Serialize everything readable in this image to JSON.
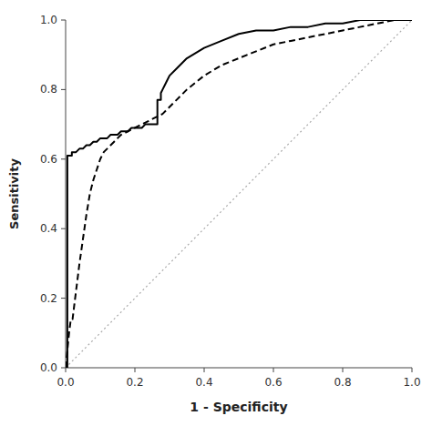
{
  "chart_data": {
    "type": "line",
    "xlabel": "1 - Specificity",
    "ylabel": "Sensitivity",
    "xlim": [
      0.0,
      1.0
    ],
    "ylim": [
      0.0,
      1.0
    ],
    "xticks": [
      {
        "value": 0.0,
        "label": "0.0"
      },
      0.2,
      0.4,
      0.6,
      0.8,
      {
        "value": 1.0,
        "label": "1.0"
      }
    ],
    "yticks": [
      {
        "value": 0.0,
        "label": "0.0"
      },
      0.2,
      0.4,
      0.6,
      0.8,
      {
        "value": 1.0,
        "label": "1.0"
      }
    ],
    "grid": false,
    "series": [
      {
        "color": "#aaaaaa",
        "line_style": "dotted",
        "x": [
          0,
          1
        ],
        "values": [
          0,
          1
        ]
      },
      {
        "color": "#000000",
        "line_style": "solid",
        "x": [
          0.0,
          0.005,
          0.005,
          0.018,
          0.018,
          0.025,
          0.03,
          0.04,
          0.05,
          0.06,
          0.07,
          0.08,
          0.09,
          0.1,
          0.11,
          0.12,
          0.13,
          0.14,
          0.15,
          0.16,
          0.17,
          0.18,
          0.19,
          0.2,
          0.21,
          0.22,
          0.23,
          0.24,
          0.25,
          0.26,
          0.265,
          0.265,
          0.275,
          0.275,
          0.28,
          0.29,
          0.3,
          0.32,
          0.35,
          0.4,
          0.45,
          0.5,
          0.55,
          0.6,
          0.65,
          0.7,
          0.75,
          0.8,
          0.85,
          0.9,
          0.95,
          1.0
        ],
        "values": [
          0.0,
          0.0,
          0.61,
          0.61,
          0.62,
          0.62,
          0.62,
          0.63,
          0.63,
          0.64,
          0.64,
          0.65,
          0.65,
          0.66,
          0.66,
          0.66,
          0.67,
          0.67,
          0.67,
          0.68,
          0.68,
          0.68,
          0.69,
          0.69,
          0.69,
          0.69,
          0.7,
          0.7,
          0.7,
          0.7,
          0.7,
          0.77,
          0.77,
          0.79,
          0.8,
          0.82,
          0.84,
          0.86,
          0.89,
          0.92,
          0.94,
          0.96,
          0.97,
          0.97,
          0.98,
          0.98,
          0.99,
          0.99,
          1.0,
          1.0,
          1.0,
          1.0
        ]
      },
      {
        "color": "#000000",
        "line_style": "dashed",
        "x": [
          0.0,
          0.005,
          0.01,
          0.015,
          0.02,
          0.025,
          0.03,
          0.04,
          0.05,
          0.06,
          0.07,
          0.08,
          0.09,
          0.1,
          0.11,
          0.12,
          0.13,
          0.14,
          0.15,
          0.16,
          0.18,
          0.2,
          0.22,
          0.24,
          0.26,
          0.28,
          0.3,
          0.32,
          0.35,
          0.4,
          0.45,
          0.5,
          0.55,
          0.6,
          0.65,
          0.7,
          0.75,
          0.8,
          0.85,
          0.9,
          0.95,
          1.0
        ],
        "values": [
          0.0,
          0.05,
          0.1,
          0.14,
          0.14,
          0.18,
          0.22,
          0.3,
          0.37,
          0.44,
          0.5,
          0.54,
          0.57,
          0.6,
          0.62,
          0.63,
          0.64,
          0.65,
          0.66,
          0.67,
          0.68,
          0.69,
          0.7,
          0.71,
          0.72,
          0.73,
          0.75,
          0.77,
          0.8,
          0.84,
          0.87,
          0.89,
          0.91,
          0.93,
          0.94,
          0.95,
          0.96,
          0.97,
          0.98,
          0.99,
          1.0,
          1.0
        ]
      }
    ]
  }
}
